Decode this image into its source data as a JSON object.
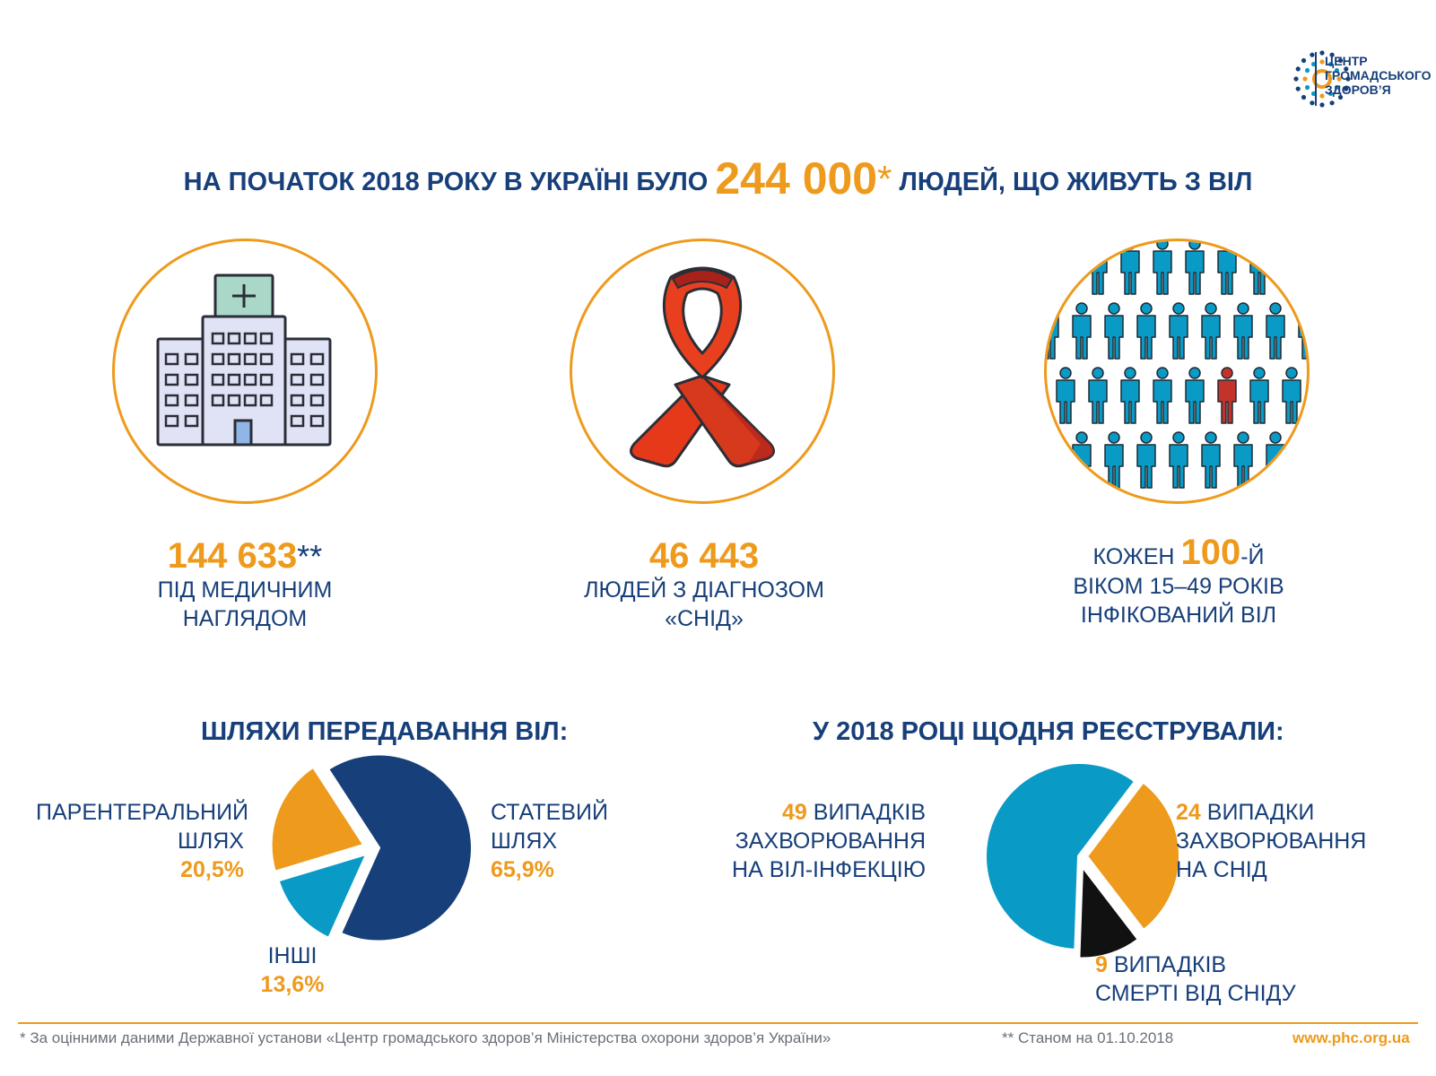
{
  "logo": {
    "line1": "ЦЕНТР",
    "line2": "ГРОМАДСЬКОГО",
    "line3": "ЗДОРОВ’Я"
  },
  "headline": {
    "before": "НА ПОЧАТОК 2018 РОКУ В УКРАЇНІ БУЛО",
    "number": "244 000",
    "star": "*",
    "after": "ЛЮДЕЙ, ЩО ЖИВУТЬ З ВІЛ"
  },
  "stats": [
    {
      "number": "144 633",
      "suffix": "**",
      "line1": "ПІД МЕДИЧНИМ",
      "line2": "НАГЛЯДОМ",
      "icon": "hospital-icon"
    },
    {
      "number": "46 443",
      "line1": "ЛЮДЕЙ З ДІАГНОЗОМ",
      "line2": "«СНІД»",
      "icon": "ribbon-icon"
    },
    {
      "prefix": "КОЖЕН",
      "number": "100",
      "suffix": "-Й",
      "line1": "ВІКОМ 15–49 РОКІВ",
      "line2": "ІНФІКОВАНИЙ ВІЛ",
      "icon": "people-crowd-icon"
    }
  ],
  "colors": {
    "navy": "#173f7a",
    "orange": "#ee9a1c",
    "cyan": "#0a9ac6",
    "black": "#111111",
    "red": "#c4332a"
  },
  "chart_data": [
    {
      "type": "pie",
      "title": "ШЛЯХИ ПЕРЕДАВАННЯ ВІЛ:",
      "categories": [
        "СТАТЕВИЙ ШЛЯХ",
        "ІНШІ",
        "ПАРЕНТЕРАЛЬНИЙ ШЛЯХ"
      ],
      "values": [
        65.9,
        13.6,
        20.5
      ],
      "value_labels": [
        "65,9%",
        "13,6%",
        "20,5%"
      ],
      "colors": [
        "#173f7a",
        "#0a9ac6",
        "#ee9a1c"
      ],
      "labels": {
        "statevyi": {
          "l1": "СТАТЕВИЙ",
          "l2": "ШЛЯХ",
          "pct": "65,9%"
        },
        "inshi": {
          "l1": "ІНШІ",
          "pct": "13,6%"
        },
        "parent": {
          "l1": "ПАРЕНТЕРАЛЬНИЙ",
          "l2": "ШЛЯХ",
          "pct": "20,5%"
        }
      }
    },
    {
      "type": "pie",
      "title": "У 2018 РОЦІ ЩОДНЯ РЕЄСТРУВАЛИ:",
      "categories": [
        "ВИПАДКІВ ЗАХВОРЮВАННЯ НА ВІЛ-ІНФЕКЦІЮ",
        "ВИПАДКИ ЗАХВОРЮВАННЯ НА СНІД",
        "ВИПАДКІВ СМЕРТІ ВІД СНІДУ"
      ],
      "values": [
        49,
        24,
        9
      ],
      "colors": [
        "#0a9ac6",
        "#ee9a1c",
        "#111111"
      ],
      "labels": {
        "hiv": {
          "num": "49",
          "l1": "ВИПАДКІВ",
          "l2": "ЗАХВОРЮВАННЯ",
          "l3": "НА ВІЛ-ІНФЕКЦІЮ"
        },
        "aids": {
          "num": "24",
          "l1": "ВИПАДКИ",
          "l2": "ЗАХВОРЮВАННЯ",
          "l3": "НА СНІД"
        },
        "death": {
          "num": "9",
          "l1": "ВИПАДКІВ",
          "l2": "СМЕРТІ ВІД СНІДУ"
        }
      }
    }
  ],
  "footer": {
    "note1": "* За оцінними даними Державної установи «Центр громадського здоров’я Міністерства охорони здоров’я України»",
    "note2": "** Станом на 01.10.2018",
    "url": "www.phc.org.ua"
  }
}
